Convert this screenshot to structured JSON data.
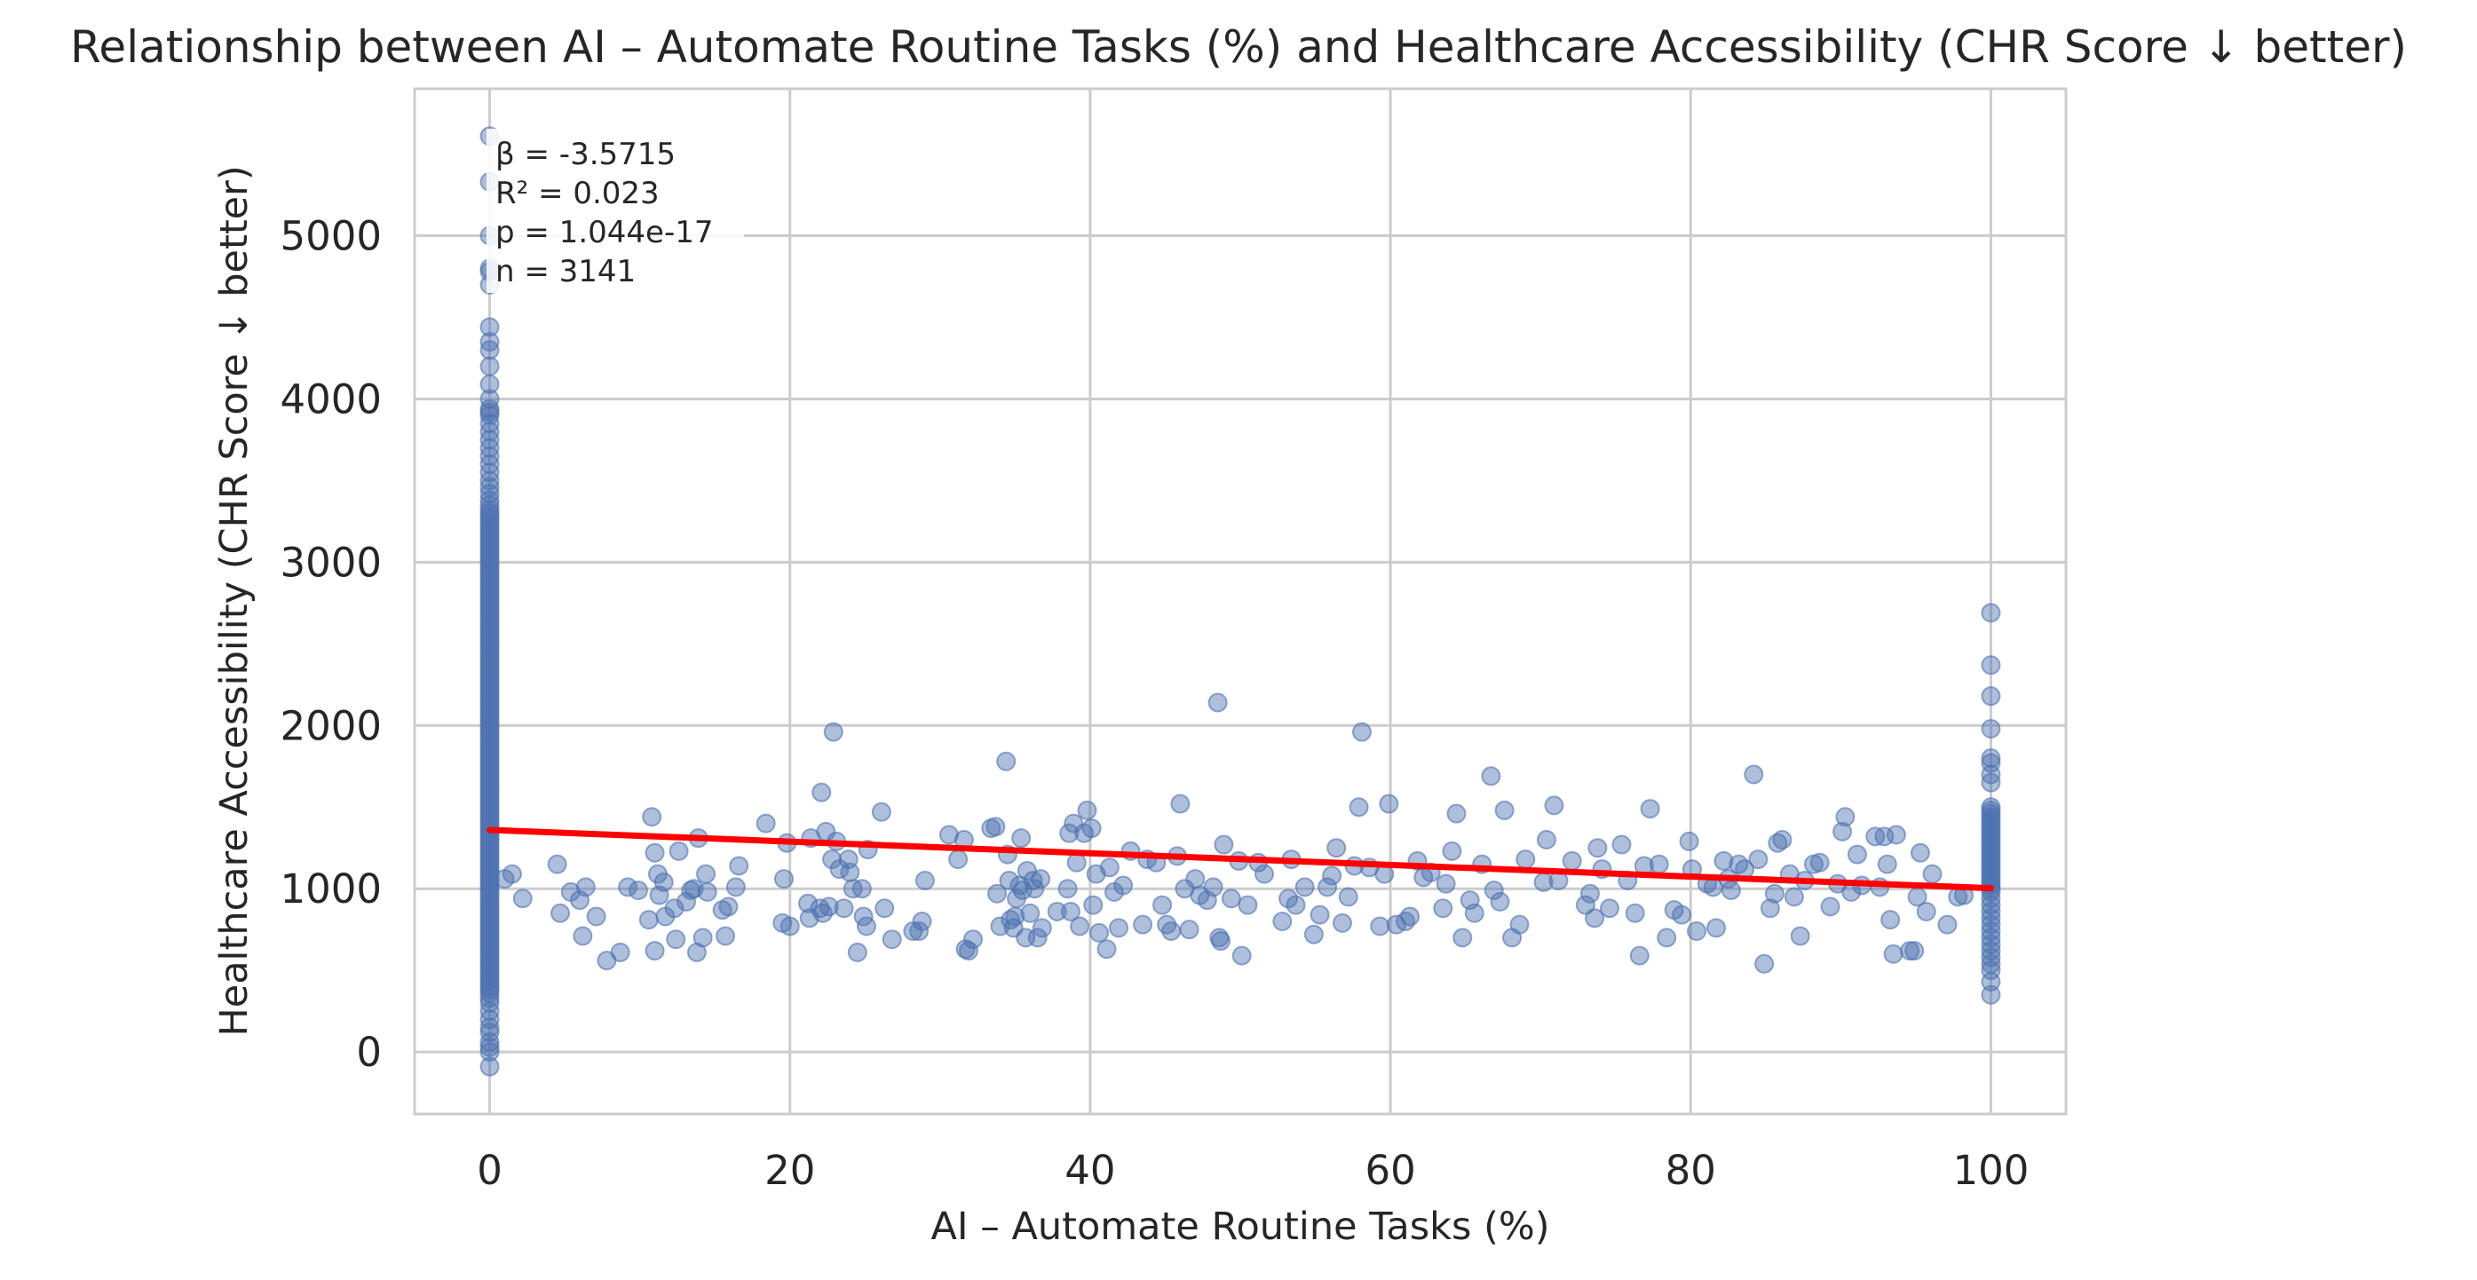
{
  "chart_data": {
    "type": "scatter",
    "title": "Relationship between AI – Automate Routine Tasks (%) and Healthcare Accessibility (CHR Score ↓ better)",
    "xlabel": "AI – Automate Routine Tasks (%)",
    "ylabel": "Healthcare Accessibility (CHR Score ↓ better)",
    "xlim": [
      -5,
      105
    ],
    "ylim": [
      -380,
      5900
    ],
    "xticks": [
      0,
      20,
      40,
      60,
      80,
      100
    ],
    "yticks": [
      0,
      1000,
      2000,
      3000,
      4000,
      5000
    ],
    "grid": true,
    "point_color": "#4c72b0",
    "line_color": "#ff0000",
    "regression": {
      "x": [
        0,
        100
      ],
      "y": [
        1360,
        1003
      ]
    },
    "stats": [
      "β = -3.5715",
      "R² = 0.023",
      "p = 1.044e-17",
      "n = 3141"
    ],
    "points_x0": [
      -90,
      0,
      30,
      60,
      120,
      150,
      200,
      250,
      300,
      330,
      360,
      380,
      400,
      420,
      440,
      460,
      480,
      500,
      520,
      540,
      560,
      580,
      600,
      620,
      640,
      660,
      680,
      700,
      720,
      740,
      760,
      780,
      800,
      820,
      840,
      860,
      880,
      900,
      920,
      940,
      960,
      980,
      1000,
      1020,
      1040,
      1060,
      1080,
      1100,
      1120,
      1140,
      1160,
      1180,
      1200,
      1220,
      1240,
      1260,
      1280,
      1300,
      1320,
      1340,
      1360,
      1380,
      1400,
      1420,
      1440,
      1460,
      1480,
      1500,
      1520,
      1540,
      1560,
      1580,
      1600,
      1620,
      1640,
      1660,
      1680,
      1700,
      1720,
      1740,
      1760,
      1780,
      1800,
      1820,
      1840,
      1860,
      1880,
      1900,
      1920,
      1940,
      1960,
      1980,
      2000,
      2020,
      2040,
      2060,
      2080,
      2100,
      2120,
      2140,
      2160,
      2180,
      2200,
      2220,
      2240,
      2260,
      2280,
      2300,
      2320,
      2340,
      2360,
      2380,
      2400,
      2420,
      2440,
      2460,
      2480,
      2500,
      2520,
      2540,
      2560,
      2580,
      2600,
      2620,
      2640,
      2660,
      2680,
      2700,
      2720,
      2740,
      2760,
      2780,
      2800,
      2820,
      2840,
      2860,
      2880,
      2900,
      2920,
      2940,
      2960,
      2980,
      3000,
      3020,
      3040,
      3060,
      3080,
      3100,
      3120,
      3140,
      3160,
      3180,
      3200,
      3220,
      3240,
      3260,
      3280,
      3300,
      3320,
      3350,
      3380,
      3420,
      3460,
      3500,
      3550,
      3600,
      3650,
      3700,
      3750,
      3800,
      3850,
      3900,
      3920,
      3940,
      4000,
      4090,
      4200,
      4300,
      4350,
      4440,
      4700,
      4780,
      4800,
      5000,
      5330,
      5610
    ],
    "points_x100": [
      350,
      430,
      500,
      540,
      580,
      620,
      660,
      700,
      740,
      780,
      820,
      860,
      900,
      940,
      980,
      1000,
      1020,
      1040,
      1060,
      1080,
      1100,
      1120,
      1140,
      1160,
      1180,
      1200,
      1220,
      1240,
      1260,
      1280,
      1300,
      1320,
      1340,
      1360,
      1380,
      1400,
      1420,
      1440,
      1460,
      1480,
      1500,
      1650,
      1700,
      1770,
      1800,
      1980,
      2180,
      2370,
      2690
    ],
    "points_mid": [
      [
        1,
        1060
      ],
      [
        1.5,
        1090
      ],
      [
        2.2,
        940
      ],
      [
        4.5,
        1150
      ],
      [
        4.7,
        850
      ],
      [
        5.4,
        980
      ],
      [
        6,
        930
      ],
      [
        6.2,
        710
      ],
      [
        6.4,
        1010
      ],
      [
        7.1,
        830
      ],
      [
        7.8,
        560
      ],
      [
        8.7,
        610
      ],
      [
        9.2,
        1010
      ],
      [
        9.9,
        990
      ],
      [
        10.6,
        810
      ],
      [
        10.8,
        1440
      ],
      [
        11,
        1220
      ],
      [
        11,
        620
      ],
      [
        11.2,
        1090
      ],
      [
        11.3,
        960
      ],
      [
        11.6,
        1040
      ],
      [
        11.7,
        830
      ],
      [
        12.3,
        880
      ],
      [
        12.4,
        690
      ],
      [
        12.6,
        1230
      ],
      [
        13.1,
        920
      ],
      [
        13.4,
        990
      ],
      [
        13.6,
        1000
      ],
      [
        13.8,
        610
      ],
      [
        13.9,
        1310
      ],
      [
        14.2,
        700
      ],
      [
        14.4,
        1090
      ],
      [
        14.5,
        980
      ],
      [
        15.5,
        870
      ],
      [
        15.7,
        710
      ],
      [
        15.9,
        890
      ],
      [
        16.4,
        1010
      ],
      [
        16.6,
        1140
      ],
      [
        18.4,
        1400
      ],
      [
        19.5,
        790
      ],
      [
        19.6,
        1060
      ],
      [
        19.8,
        1280
      ],
      [
        20,
        770
      ],
      [
        21.2,
        910
      ],
      [
        21.3,
        820
      ],
      [
        21.4,
        1310
      ],
      [
        22,
        880
      ],
      [
        22.1,
        1590
      ],
      [
        22.2,
        850
      ],
      [
        22.4,
        1350
      ],
      [
        22.6,
        890
      ],
      [
        22.8,
        1180
      ],
      [
        22.9,
        1960
      ],
      [
        23.1,
        1290
      ],
      [
        23.3,
        1120
      ],
      [
        23.6,
        880
      ],
      [
        23.9,
        1180
      ],
      [
        24,
        1100
      ],
      [
        24.2,
        1000
      ],
      [
        24.5,
        610
      ],
      [
        24.8,
        1000
      ],
      [
        24.9,
        830
      ],
      [
        25.1,
        770
      ],
      [
        25.2,
        1240
      ],
      [
        26.1,
        1470
      ],
      [
        26.3,
        880
      ],
      [
        26.8,
        690
      ],
      [
        28.2,
        740
      ],
      [
        28.6,
        740
      ],
      [
        28.8,
        800
      ],
      [
        29,
        1050
      ],
      [
        30.6,
        1330
      ],
      [
        31.2,
        1180
      ],
      [
        31.6,
        1300
      ],
      [
        31.7,
        630
      ],
      [
        31.9,
        620
      ],
      [
        32.2,
        690
      ],
      [
        33.4,
        1370
      ],
      [
        33.7,
        1380
      ],
      [
        33.8,
        970
      ],
      [
        34,
        770
      ],
      [
        34.4,
        1780
      ],
      [
        34.5,
        1210
      ],
      [
        34.6,
        1050
      ],
      [
        34.7,
        810
      ],
      [
        34.9,
        760
      ],
      [
        35,
        830
      ],
      [
        35.1,
        940
      ],
      [
        35.3,
        1020
      ],
      [
        35.4,
        1310
      ],
      [
        35.5,
        990
      ],
      [
        35.7,
        700
      ],
      [
        35.8,
        1110
      ],
      [
        36,
        850
      ],
      [
        36.2,
        1050
      ],
      [
        36.3,
        1000
      ],
      [
        36.5,
        700
      ],
      [
        36.7,
        1060
      ],
      [
        36.8,
        760
      ],
      [
        37.8,
        860
      ],
      [
        38.5,
        1000
      ],
      [
        38.6,
        1340
      ],
      [
        38.7,
        860
      ],
      [
        38.9,
        1400
      ],
      [
        39.1,
        1160
      ],
      [
        39.3,
        770
      ],
      [
        39.6,
        1340
      ],
      [
        39.8,
        1480
      ],
      [
        40.1,
        1370
      ],
      [
        40.2,
        900
      ],
      [
        40.4,
        1090
      ],
      [
        40.6,
        730
      ],
      [
        41.1,
        630
      ],
      [
        41.3,
        1130
      ],
      [
        41.6,
        980
      ],
      [
        41.9,
        760
      ],
      [
        42.2,
        1020
      ],
      [
        42.7,
        1230
      ],
      [
        43.5,
        780
      ],
      [
        43.8,
        1180
      ],
      [
        44.4,
        1160
      ],
      [
        44.8,
        900
      ],
      [
        45.1,
        780
      ],
      [
        45.4,
        740
      ],
      [
        45.8,
        1200
      ],
      [
        46,
        1520
      ],
      [
        46.3,
        1000
      ],
      [
        46.6,
        750
      ],
      [
        47,
        1060
      ],
      [
        47.3,
        960
      ],
      [
        47.8,
        930
      ],
      [
        48.2,
        1010
      ],
      [
        48.5,
        2140
      ],
      [
        48.6,
        700
      ],
      [
        48.7,
        680
      ],
      [
        48.9,
        1270
      ],
      [
        49.4,
        940
      ],
      [
        49.9,
        1170
      ],
      [
        50.1,
        590
      ],
      [
        50.5,
        900
      ],
      [
        51.2,
        1160
      ],
      [
        51.6,
        1090
      ],
      [
        52.8,
        800
      ],
      [
        53.2,
        940
      ],
      [
        53.4,
        1180
      ],
      [
        53.7,
        900
      ],
      [
        54.3,
        1010
      ],
      [
        54.9,
        720
      ],
      [
        55.3,
        840
      ],
      [
        55.8,
        1010
      ],
      [
        56.1,
        1080
      ],
      [
        56.4,
        1250
      ],
      [
        56.8,
        790
      ],
      [
        57.2,
        950
      ],
      [
        57.6,
        1140
      ],
      [
        57.9,
        1500
      ],
      [
        58.1,
        1960
      ],
      [
        58.6,
        1130
      ],
      [
        59.3,
        770
      ],
      [
        59.6,
        1090
      ],
      [
        59.9,
        1520
      ],
      [
        60.4,
        780
      ],
      [
        61,
        800
      ],
      [
        61.3,
        830
      ],
      [
        61.8,
        1170
      ],
      [
        62.2,
        1070
      ],
      [
        62.7,
        1100
      ],
      [
        63.5,
        880
      ],
      [
        63.7,
        1030
      ],
      [
        64.1,
        1230
      ],
      [
        64.4,
        1460
      ],
      [
        64.8,
        700
      ],
      [
        65.3,
        930
      ],
      [
        65.6,
        850
      ],
      [
        66.1,
        1150
      ],
      [
        66.7,
        1690
      ],
      [
        66.9,
        990
      ],
      [
        67.3,
        920
      ],
      [
        67.6,
        1480
      ],
      [
        68.1,
        700
      ],
      [
        68.6,
        780
      ],
      [
        69,
        1180
      ],
      [
        70.2,
        1040
      ],
      [
        70.4,
        1300
      ],
      [
        70.9,
        1510
      ],
      [
        71.2,
        1050
      ],
      [
        72.1,
        1170
      ],
      [
        73,
        900
      ],
      [
        73.3,
        970
      ],
      [
        73.6,
        820
      ],
      [
        73.8,
        1250
      ],
      [
        74.1,
        1120
      ],
      [
        74.6,
        880
      ],
      [
        75.4,
        1270
      ],
      [
        75.8,
        1050
      ],
      [
        76.3,
        850
      ],
      [
        76.6,
        590
      ],
      [
        76.9,
        1140
      ],
      [
        77.3,
        1490
      ],
      [
        77.9,
        1150
      ],
      [
        78.4,
        700
      ],
      [
        78.9,
        870
      ],
      [
        79.4,
        840
      ],
      [
        79.9,
        1290
      ],
      [
        80.1,
        1120
      ],
      [
        80.4,
        740
      ],
      [
        81.1,
        1030
      ],
      [
        81.5,
        1010
      ],
      [
        81.7,
        760
      ],
      [
        82.2,
        1170
      ],
      [
        82.5,
        1060
      ],
      [
        82.7,
        990
      ],
      [
        83.2,
        1150
      ],
      [
        83.6,
        1120
      ],
      [
        84.2,
        1700
      ],
      [
        84.5,
        1180
      ],
      [
        84.9,
        540
      ],
      [
        85.3,
        880
      ],
      [
        85.6,
        970
      ],
      [
        85.8,
        1280
      ],
      [
        86.1,
        1300
      ],
      [
        86.6,
        1090
      ],
      [
        86.9,
        950
      ],
      [
        87.3,
        710
      ],
      [
        87.6,
        1050
      ],
      [
        88.2,
        1150
      ],
      [
        88.6,
        1160
      ],
      [
        89.3,
        890
      ],
      [
        89.8,
        1030
      ],
      [
        90.1,
        1350
      ],
      [
        90.3,
        1440
      ],
      [
        90.7,
        980
      ],
      [
        91.1,
        1210
      ],
      [
        91.4,
        1020
      ],
      [
        92.3,
        1320
      ],
      [
        92.6,
        1010
      ],
      [
        92.9,
        1320
      ],
      [
        93.1,
        1150
      ],
      [
        93.3,
        810
      ],
      [
        93.5,
        600
      ],
      [
        93.7,
        1330
      ],
      [
        94.6,
        620
      ],
      [
        94.9,
        620
      ],
      [
        95.1,
        950
      ],
      [
        95.3,
        1220
      ],
      [
        95.7,
        860
      ],
      [
        96.1,
        1090
      ],
      [
        97.1,
        780
      ],
      [
        97.8,
        950
      ],
      [
        98.2,
        960
      ]
    ]
  }
}
